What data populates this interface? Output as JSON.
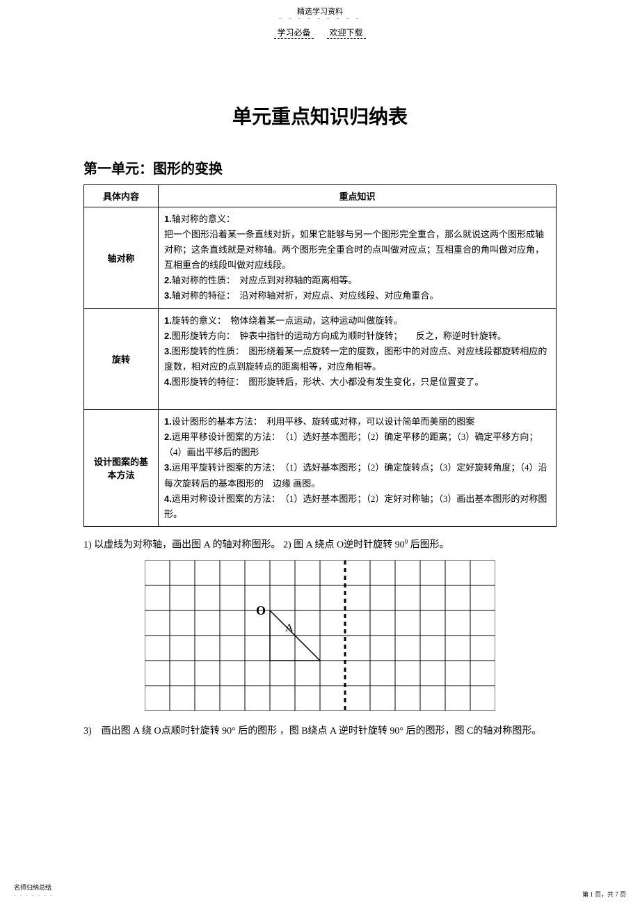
{
  "header": {
    "top_label": "精选学习资料",
    "sub_left": "学习必备",
    "sub_right": "欢迎下载"
  },
  "title": "单元重点知识归纳表",
  "unit_title": "第一单元：图形的变换",
  "table": {
    "headers": [
      "具体内容",
      "重点知识"
    ],
    "rows": [
      {
        "name": "轴对称",
        "lines": [
          "<b>1.</b>轴对称的意义：",
          "把一个图形沿着某一条直线对折，如果它能够与另一个图形完全重合，那么就说这两个图形成轴对称；这条直线就是对称轴。两个图形完全重合时的点叫做对应点；互相重合的角叫做对应角，互相重合的线段叫做对应线段。",
          "<b>2.</b>轴对称的性质：　对应点到对称轴的距离相等。",
          "<b>3.</b>轴对称的特征：　沿对称轴对折，对应点、对应线段、对应角重合。"
        ]
      },
      {
        "name": "旋转",
        "lines": [
          "<b>1.</b>旋转的意义：　物体绕着某一点运动，这种运动叫做旋转。",
          "<b>2.</b>图形旋转方向：　钟表中指针的运动方向成为顺时针旋转；　　反之，称逆时针旋转。",
          "<b>3.</b>图形旋转的性质：　图形绕着某一点旋转一定的度数，图形中的对应点、对应线段都旋转相应的度数，相对应的点到旋转点的距离相等，对应角相等。",
          "<b>4.</b>图形旋转的特征：　图形旋转后，形状、大小都没有发生变化，只是位置变了。",
          "&nbsp;"
        ]
      },
      {
        "name": "设计图案的基本方法",
        "lines": [
          "<b>1.</b>设计图形的基本方法：　利用平移、旋转或对称，可以设计简单而美丽的图案",
          "<b>2.</b>运用平移设计图案的方法：　（1）选好基本图形；（2）确定平移的距离；（3）确定平移方向；（4）画出平移后的图形",
          "<b>3.</b>运用平旋转计图案的方法：　（1）选好基本图形；（2）确定旋转点；（3）定好旋转角度；（4）沿每次旋转后的基本图形的　边缘 画图。",
          "<b>4.</b>运用对称设计图案的方法：　（1）选好基本图形；（2）定好对称轴；（3）画出基本图形的对称图形。"
        ]
      }
    ]
  },
  "questions": {
    "q12": "1) 以虚线为对称轴，画出图  A 的轴对称图形。 2)  图  A 绕点  O逆时针旋转  90",
    "q12_after": " 后图形。",
    "q3": "3)　画出图  A 绕  O点顺时针旋转  90° 后的图形 ，图  B绕点  A 逆时针旋转  90° 后的图形，图  C的轴对称图形。"
  },
  "grid": {
    "cols": 14,
    "rows": 6,
    "cell_size": 36,
    "stroke_color": "#000000",
    "stroke_width": 1,
    "dashed_col": 8,
    "label_O": {
      "col": 5,
      "row": 2,
      "text": "O"
    },
    "label_A": {
      "col": 6,
      "row": 3,
      "text": "A"
    },
    "triangle": {
      "points": [
        [
          5,
          2
        ],
        [
          5,
          4
        ],
        [
          7,
          4
        ]
      ]
    }
  },
  "footer": {
    "left": "名师归纳总结",
    "right": "第 1 页，共 7 页"
  }
}
